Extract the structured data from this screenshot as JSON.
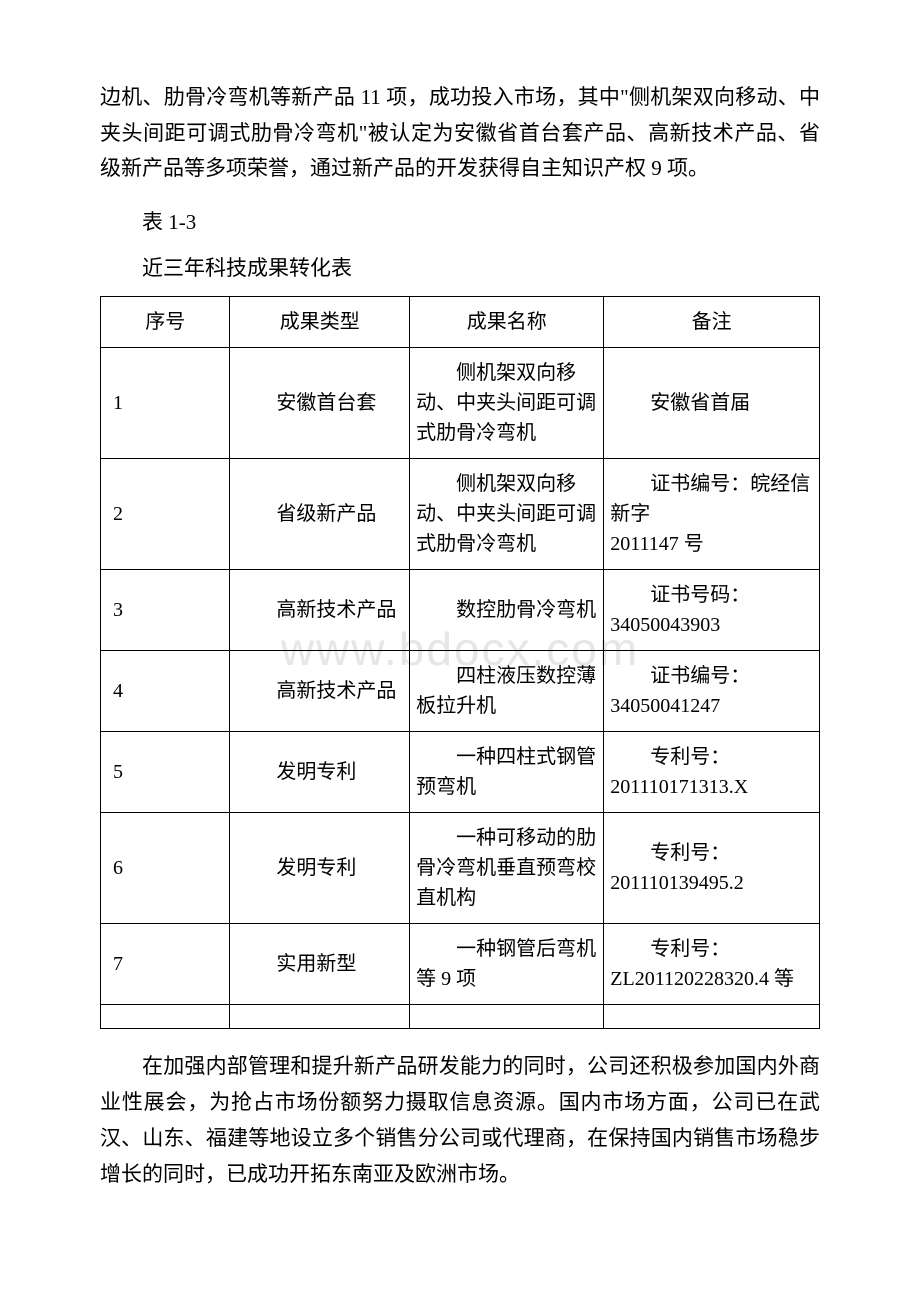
{
  "intro_paragraph": "边机、肋骨冷弯机等新产品 11 项，成功投入市场，其中\"侧机架双向移动、中夹头间距可调式肋骨冷弯机\"被认定为安徽省首台套产品、高新技术产品、省级新产品等多项荣誉，通过新产品的开发获得自主知识产权 9 项。",
  "table_label": "表 1-3",
  "table_title": "近三年科技成果转化表",
  "table": {
    "columns": [
      "序号",
      "成果类型",
      "成果名称",
      "备注"
    ],
    "col_widths": [
      "18%",
      "25%",
      "27%",
      "30%"
    ],
    "rows": [
      {
        "seq": "1",
        "type": "安徽首台套",
        "name": "侧机架双向移动、中夹头间距可调式肋骨冷弯机",
        "note": "安徽省首届"
      },
      {
        "seq": "2",
        "type": "省级新产品",
        "name": "侧机架双向移动、中夹头间距可调式肋骨冷弯机",
        "note": "证书编号：皖经信新字\n2011147 号"
      },
      {
        "seq": "3",
        "type": "高新技术产品",
        "name": "数控肋骨冷弯机",
        "note": "证书号码：34050043903"
      },
      {
        "seq": "4",
        "type": "高新技术产品",
        "name": "四柱液压数控薄板拉升机",
        "note": "证书编号：34050041247"
      },
      {
        "seq": "5",
        "type": "发明专利",
        "name": "一种四柱式钢管预弯机",
        "note": "专利号：201110171313.X"
      },
      {
        "seq": "6",
        "type": "发明专利",
        "name": "一种可移动的肋骨冷弯机垂直预弯校直机构",
        "note": "专利号：201110139495.2"
      },
      {
        "seq": "7",
        "type": "实用新型",
        "name": "一种钢管后弯机等 9 项",
        "note": "专利号：ZL201120228320.4 等"
      }
    ]
  },
  "closing_paragraph": "在加强内部管理和提升新产品研发能力的同时，公司还积极参加国内外商业性展会，为抢占市场份额努力摄取信息资源。国内市场方面，公司已在武汉、山东、福建等地设立多个销售分公司或代理商，在保持国内销售市场稳步增长的同时，已成功开拓东南亚及欧洲市场。",
  "watermark_text": "www.bdocx.com",
  "colors": {
    "text": "#000000",
    "background": "#ffffff",
    "border": "#000000",
    "watermark": "rgba(200,200,200,0.45)"
  },
  "font_sizes": {
    "body": 21,
    "table": 20,
    "watermark": 46
  }
}
